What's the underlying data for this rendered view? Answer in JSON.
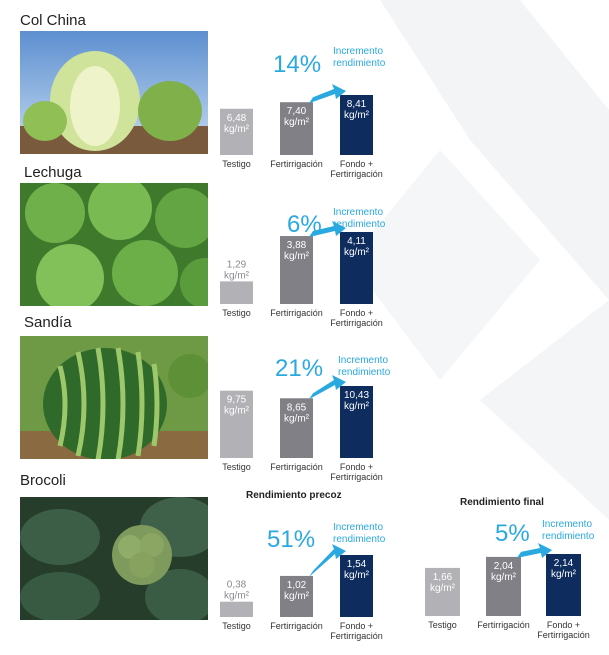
{
  "colors": {
    "testigo": "#b1b1b6",
    "fertirrigacion": "#808086",
    "fondo": "#0e2d5e",
    "accent": "#2aa9e0"
  },
  "crops": [
    {
      "title": "Col China",
      "photo": "chinese-cabbage-photo",
      "chart_index": 0
    },
    {
      "title": "Lechuga",
      "photo": "lettuce-photo",
      "chart_index": 1
    },
    {
      "title": "Sandía",
      "photo": "watermelon-photo",
      "chart_index": 2
    },
    {
      "title": "Brocoli",
      "photo": "broccoli-photo",
      "chart_index": 3
    }
  ],
  "brocoli_subtitles": {
    "precoz": "Rendimiento precoz",
    "final": "Rendimiento final"
  },
  "chart_data": [
    {
      "type": "bar",
      "title": "",
      "categories": [
        "Testigo",
        "Fertirrigación",
        "Fondo + Fertirrigación"
      ],
      "values": [
        6.48,
        7.4,
        8.41
      ],
      "value_labels": [
        "6,48 kg/m²",
        "7,40 kg/m²",
        "8,41 kg/m²"
      ],
      "increase_pct": "14%",
      "increase_label": [
        "Incremento",
        "rendimiento"
      ]
    },
    {
      "type": "bar",
      "title": "",
      "categories": [
        "Testigo",
        "Fertirrigación",
        "Fondo + Fertirrigación"
      ],
      "values": [
        1.29,
        3.88,
        4.11
      ],
      "value_labels": [
        "1,29 kg/m²",
        "3,88 kg/m²",
        "4,11 kg/m²"
      ],
      "increase_pct": "6%",
      "increase_label": [
        "Incremento",
        "rendimiento"
      ]
    },
    {
      "type": "bar",
      "title": "",
      "categories": [
        "Testigo",
        "Fertirrigación",
        "Fondo + Fertirrigación"
      ],
      "values": [
        9.75,
        8.65,
        10.43
      ],
      "value_labels": [
        "9,75 kg/m²",
        "8,65 kg/m²",
        "10,43 kg/m²"
      ],
      "increase_pct": "21%",
      "increase_label": [
        "Incremento",
        "rendimiento"
      ]
    },
    {
      "type": "bar",
      "title": "Rendimiento precoz",
      "categories": [
        "Testigo",
        "Fertirrigación",
        "Fondo + Fertirrigación"
      ],
      "values": [
        0.38,
        1.02,
        1.54
      ],
      "value_labels": [
        "0,38 kg/m²",
        "1,02 kg/m²",
        "1,54 kg/m²"
      ],
      "increase_pct": "51%",
      "increase_label": [
        "Incremento",
        "rendimiento"
      ]
    },
    {
      "type": "bar",
      "title": "Rendimiento final",
      "categories": [
        "Testigo",
        "Fertirrigación",
        "Fondo + Fertirrigación"
      ],
      "values": [
        1.66,
        2.04,
        2.14
      ],
      "value_labels": [
        "1,66 kg/m²",
        "2,04 kg/m²",
        "2,14 kg/m²"
      ],
      "increase_pct": "5%",
      "increase_label": [
        "Incremento",
        "rendimiento"
      ]
    }
  ]
}
